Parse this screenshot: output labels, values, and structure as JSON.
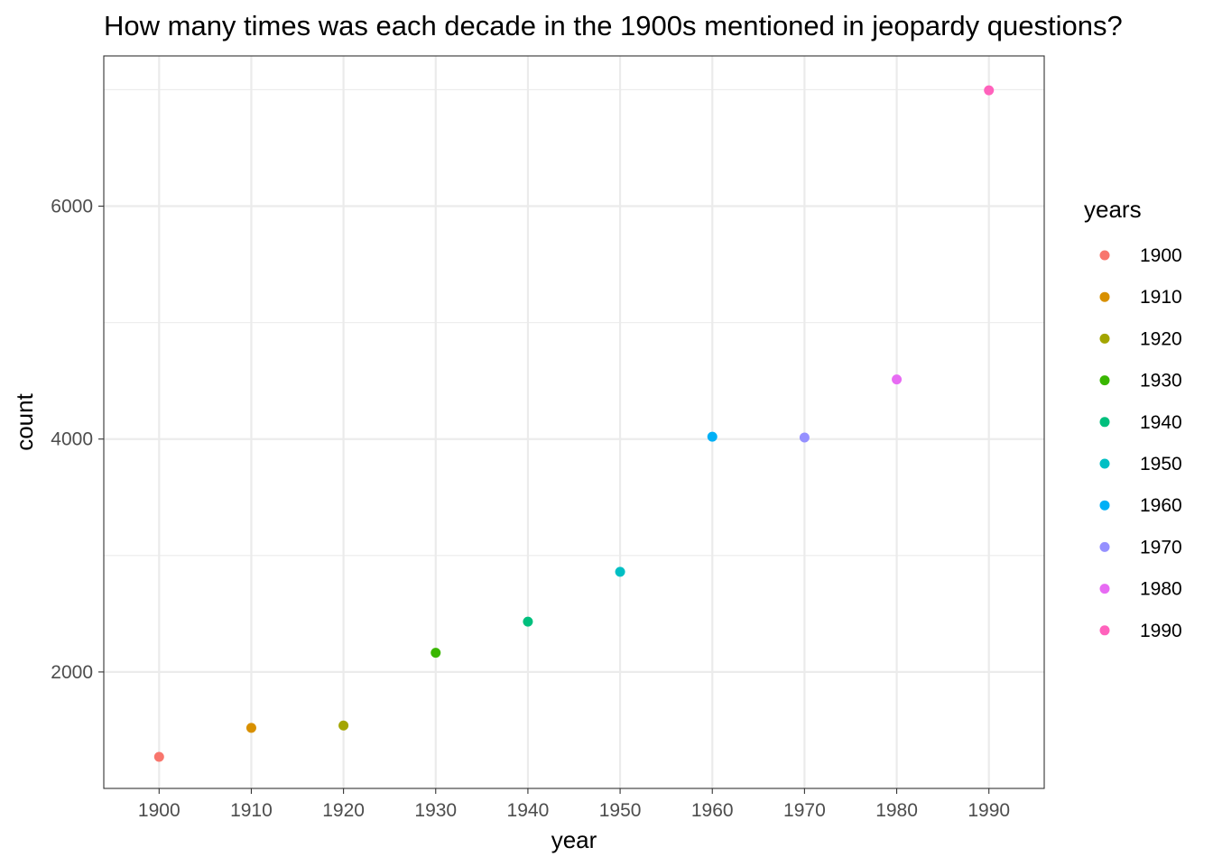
{
  "chart_data": {
    "type": "scatter",
    "title": "How many times was each decade in the 1900s mentioned in jeopardy questions?",
    "xlabel": "year",
    "ylabel": "count",
    "x_ticks": [
      "1900",
      "1910",
      "1920",
      "1930",
      "1940",
      "1950",
      "1960",
      "1970",
      "1980",
      "1990"
    ],
    "y_ticks": [
      2000,
      4000,
      6000
    ],
    "xlim": [
      1894,
      1996
    ],
    "ylim": [
      1000,
      7290
    ],
    "grid": true,
    "legend": {
      "title": "years",
      "placement": "right"
    },
    "points": [
      {
        "x": 1900,
        "y": 1271,
        "label": "1900",
        "color": "#F8766D"
      },
      {
        "x": 1910,
        "y": 1520,
        "label": "1910",
        "color": "#D89000"
      },
      {
        "x": 1920,
        "y": 1540,
        "label": "1920",
        "color": "#A3A500"
      },
      {
        "x": 1930,
        "y": 2165,
        "label": "1930",
        "color": "#39B600"
      },
      {
        "x": 1940,
        "y": 2432,
        "label": "1940",
        "color": "#00BF7D"
      },
      {
        "x": 1950,
        "y": 2860,
        "label": "1950",
        "color": "#00BFC4"
      },
      {
        "x": 1960,
        "y": 4020,
        "label": "1960",
        "color": "#00B0F6"
      },
      {
        "x": 1970,
        "y": 4013,
        "label": "1970",
        "color": "#9590FF"
      },
      {
        "x": 1980,
        "y": 4512,
        "label": "1980",
        "color": "#E76BF3"
      },
      {
        "x": 1990,
        "y": 6995,
        "label": "1990",
        "color": "#FF62BC"
      }
    ]
  }
}
